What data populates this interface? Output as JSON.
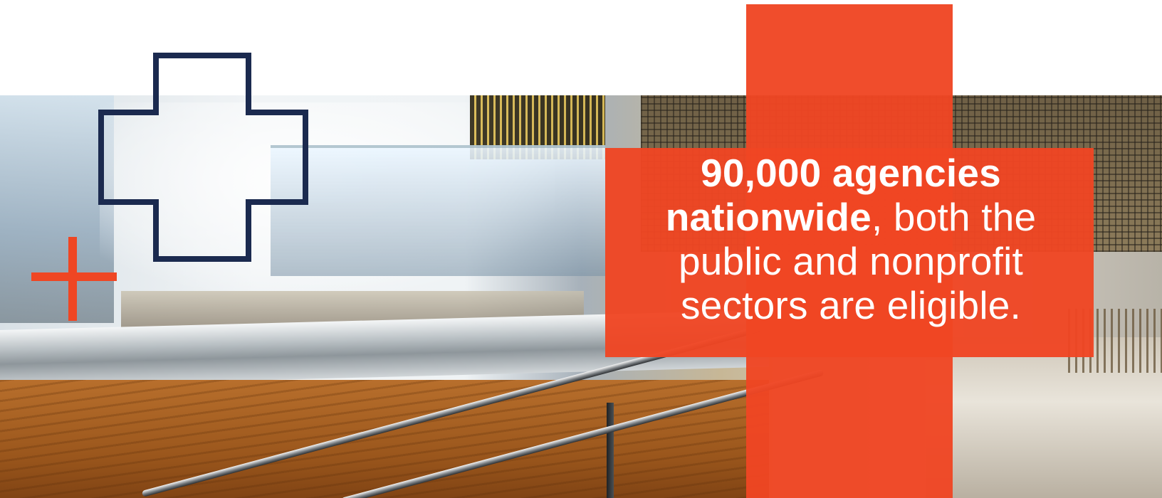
{
  "headline": {
    "bold_line1": "90,000 agencies",
    "bold_line2": "nationwide",
    "rest_line2": ", both the",
    "line3": "public and nonprofit",
    "line4": "sectors are eligible."
  },
  "colors": {
    "accent_orange": "#ef4623",
    "navy": "#1b2a4f",
    "text": "#ffffff"
  },
  "decor": {
    "photo": "cafeteria-serving-line-photo",
    "big_cross": "orange-cross-shape",
    "outline_cross": "navy-outline-cross-icon",
    "small_plus": "orange-plus-icon"
  }
}
